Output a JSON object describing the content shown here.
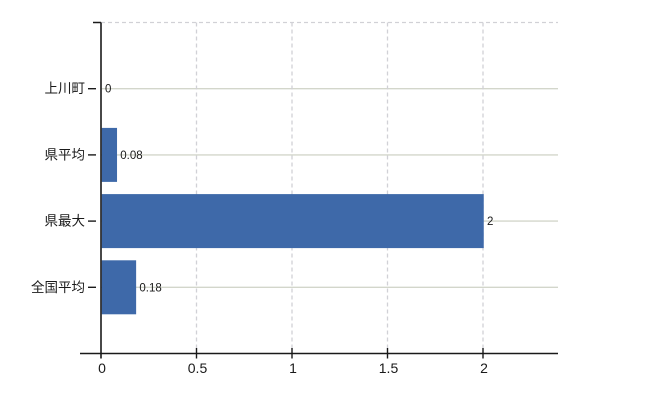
{
  "chart_data": {
    "type": "bar",
    "orientation": "horizontal",
    "title": "",
    "xlabel": "",
    "ylabel": "",
    "categories": [
      "上川町",
      "県平均",
      "県最大",
      "全国平均"
    ],
    "values": [
      0,
      0.08,
      2,
      0.18
    ],
    "value_labels": [
      "0",
      "0.08",
      "2",
      "0.18"
    ],
    "x_ticks": [
      0,
      0.5,
      1,
      1.5,
      2
    ],
    "x_tick_labels": [
      "0",
      "0.5",
      "1",
      "1.5",
      "2"
    ],
    "xlim": [
      0,
      2.39
    ],
    "grid": true,
    "legend": false,
    "gridline_style": {
      "vertical": "dashed",
      "horizontal": "solid",
      "top_border": "dashed"
    },
    "colors": {
      "bar": "#3e69a9",
      "axis": "#1a1a1a",
      "tick_text": "#1a1a1a",
      "category_text": "#1a1a1a",
      "value_text": "#1a1a1a",
      "grid_solid": "#d3d6cb",
      "grid_dashed": "#d1d1d6",
      "background": "#ffffff"
    }
  }
}
